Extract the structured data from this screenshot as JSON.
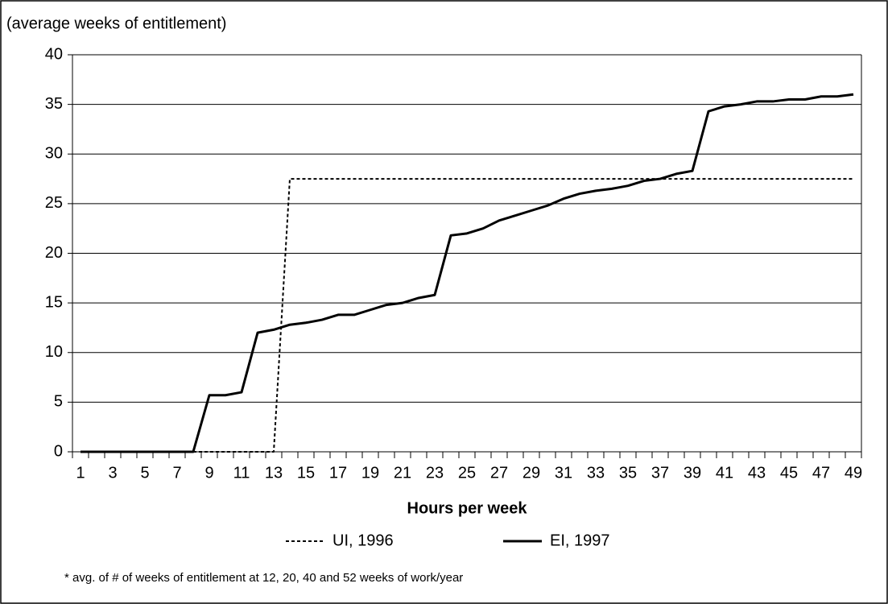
{
  "chart_data": {
    "type": "line",
    "y_label": "(average weeks of entitlement)",
    "x_label": "Hours per week",
    "footnote": "* avg. of # of weeks of entitlement at 12, 20, 40 and 52 weeks of work/year",
    "categories": [
      "1",
      null,
      "3",
      null,
      "5",
      null,
      "7",
      null,
      "9",
      null,
      "11",
      null,
      "13",
      null,
      "15",
      null,
      "17",
      null,
      "19",
      null,
      "21",
      null,
      "23",
      null,
      "25",
      null,
      "27",
      null,
      "29",
      null,
      "31",
      null,
      "33",
      null,
      "35",
      null,
      "37",
      null,
      "39",
      null,
      "41",
      null,
      "43",
      null,
      "45",
      null,
      "47",
      null,
      "49"
    ],
    "series": [
      {
        "name": "UI, 1996",
        "color": "#000000",
        "dash": true,
        "values": [
          0,
          0,
          0,
          0,
          0,
          0,
          0,
          0,
          0,
          0,
          0,
          0,
          0,
          27.5,
          27.5,
          27.5,
          27.5,
          27.5,
          27.5,
          27.5,
          27.5,
          27.5,
          27.5,
          27.5,
          27.5,
          27.5,
          27.5,
          27.5,
          27.5,
          27.5,
          27.5,
          27.5,
          27.5,
          27.5,
          27.5,
          27.5,
          27.5,
          27.5,
          27.5,
          27.5,
          27.5,
          27.5,
          27.5,
          27.5,
          27.5,
          27.5,
          27.5,
          27.5,
          27.5
        ]
      },
      {
        "name": "EI, 1997",
        "color": "#000000",
        "dash": false,
        "values": [
          0,
          0,
          0,
          0,
          0,
          0,
          0,
          0,
          5.7,
          5.7,
          6,
          12,
          12.3,
          12.8,
          13,
          13.3,
          13.8,
          13.8,
          14.3,
          14.8,
          15,
          15.5,
          15.8,
          21.8,
          22,
          22.5,
          23.3,
          23.8,
          24.3,
          24.8,
          25.5,
          26,
          26.3,
          26.5,
          26.8,
          27.3,
          27.5,
          28,
          28.3,
          34.3,
          34.8,
          35,
          35.3,
          35.3,
          35.5,
          35.5,
          35.8,
          35.8,
          36
        ]
      }
    ],
    "ylim": [
      0,
      40
    ],
    "yticks": [
      0,
      5,
      10,
      15,
      20,
      25,
      30,
      35,
      40
    ],
    "grid": true
  }
}
